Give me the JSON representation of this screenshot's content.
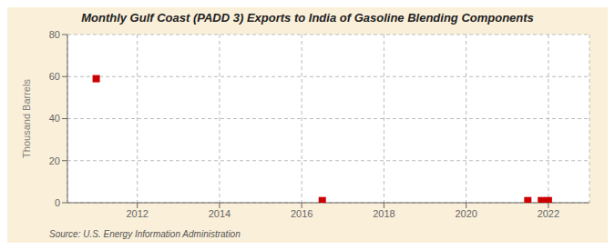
{
  "chart_data": {
    "type": "scatter",
    "title": "Monthly Gulf Coast (PADD 3) Exports to India of Gasoline Blending Components",
    "y_label": "Thousand Barrels",
    "annotations": [
      "Source: U.S. Energy Information Administration"
    ],
    "x": [
      2011.0,
      2016.5,
      2021.5,
      2021.83,
      2022.0
    ],
    "values": [
      59.0,
      1.0,
      1.0,
      1.0,
      1.0
    ],
    "color": "#cc0000",
    "marker": "square",
    "xlim": [
      2010.3,
      2023.0
    ],
    "ylim": [
      0,
      80
    ],
    "xticks": [
      2012,
      2014,
      2016,
      2018,
      2020,
      2022
    ],
    "yticks": [
      0,
      20,
      40,
      60,
      80
    ],
    "grid": true
  }
}
